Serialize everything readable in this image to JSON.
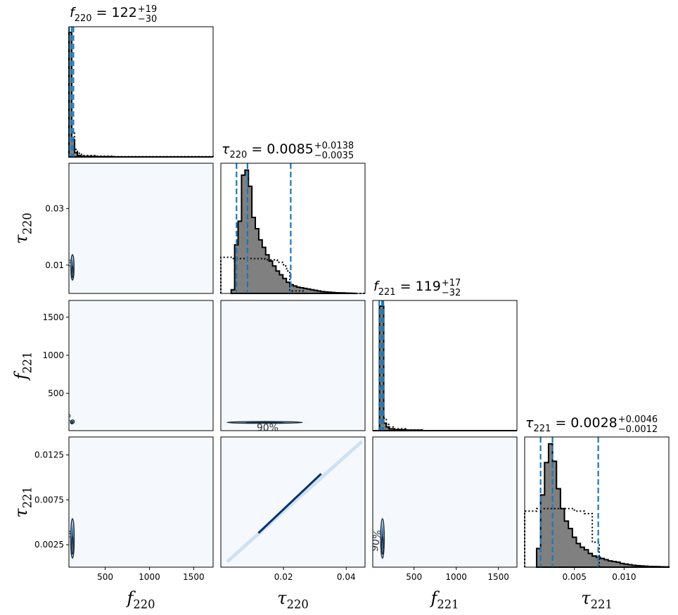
{
  "colors": {
    "hist_fill": "#808080",
    "hist_edge": "#000000",
    "prior_line": "#000000",
    "quantile_line": "#1f77b4",
    "density_bg": "#f5f9fe",
    "contour": "#1b2a3a",
    "contour_fill": "#4a7fb0",
    "frame": "#000000"
  },
  "chart_data": {
    "type": "corner",
    "parameters": [
      "f_220",
      "tau_220",
      "f_221",
      "tau_221"
    ],
    "axis_labels": [
      {
        "base": "f",
        "sub": "220"
      },
      {
        "base": "τ",
        "sub": "220"
      },
      {
        "base": "f",
        "sub": "221"
      },
      {
        "base": "τ",
        "sub": "221"
      }
    ],
    "ranges": [
      [
        90,
        1720
      ],
      [
        0.0,
        0.046
      ],
      [
        10,
        1720
      ],
      [
        0.0,
        0.0145
      ]
    ],
    "tick_values": [
      [
        500,
        1000,
        1500
      ],
      [
        0.01,
        0.03
      ],
      [
        500,
        1000,
        1500
      ],
      [
        0.0025,
        0.0075,
        0.0125
      ]
    ],
    "tick_labels": [
      [
        "500",
        "1000",
        "1500"
      ],
      [
        "0.01",
        "0.03"
      ],
      [
        "500",
        "1000",
        "1500"
      ],
      [
        "0.0025",
        "0.0075",
        "0.0125"
      ]
    ],
    "bottom_tick_values": [
      [
        500,
        1000,
        1500
      ],
      [
        0.02,
        0.04
      ],
      [
        500,
        1000,
        1500
      ],
      [
        0.005,
        0.01
      ]
    ],
    "bottom_tick_labels": [
      [
        "500",
        "1000",
        "1500"
      ],
      [
        "0.02",
        "0.04"
      ],
      [
        "500",
        "1000",
        "1500"
      ],
      [
        "0.005",
        "0.010"
      ]
    ],
    "diagonal_titles": [
      {
        "base": "f",
        "sub": "220",
        "value": "122",
        "plus": "+19",
        "minus": "−30"
      },
      {
        "base": "τ",
        "sub": "220",
        "value": "0.0085",
        "plus": "+0.0138",
        "minus": "−0.0035"
      },
      {
        "base": "f",
        "sub": "221",
        "value": "119",
        "plus": "+17",
        "minus": "−32"
      },
      {
        "base": "τ",
        "sub": "221",
        "value": "0.0028",
        "plus": "+0.0046",
        "minus": "−0.0012"
      }
    ],
    "quantiles": [
      [
        92,
        122,
        141
      ],
      [
        0.005,
        0.0085,
        0.0223
      ],
      [
        87,
        119,
        136
      ],
      [
        0.0016,
        0.0028,
        0.0074
      ]
    ],
    "posterior_histograms": [
      {
        "edges": [
          90,
          122,
          154,
          186,
          218,
          250,
          400,
          600,
          1720
        ],
        "values": [
          1.0,
          0.14,
          0.035,
          0.012,
          0.006,
          0.004,
          0.002,
          0.0
        ]
      },
      {
        "edges": [
          0.0033,
          0.0044,
          0.0055,
          0.0066,
          0.0077,
          0.0088,
          0.0099,
          0.011,
          0.0121,
          0.0132,
          0.0143,
          0.0154,
          0.0165,
          0.0176,
          0.0187,
          0.0198,
          0.0209,
          0.022,
          0.0231,
          0.0242,
          0.0253,
          0.0264,
          0.0275,
          0.0286,
          0.0297,
          0.0308,
          0.0319,
          0.033,
          0.0341,
          0.0352,
          0.0363,
          0.0374,
          0.0385,
          0.0396,
          0.0407,
          0.0418,
          0.0429
        ],
        "values": [
          0.03,
          0.39,
          0.58,
          0.95,
          0.99,
          0.86,
          0.61,
          0.52,
          0.43,
          0.37,
          0.31,
          0.26,
          0.22,
          0.18,
          0.15,
          0.12,
          0.09,
          0.07,
          0.06,
          0.05,
          0.045,
          0.04,
          0.035,
          0.03,
          0.025,
          0.02,
          0.015,
          0.012,
          0.01,
          0.008,
          0.006,
          0.005,
          0.004,
          0.003,
          0.002,
          0.001
        ]
      },
      {
        "edges": [
          10,
          90,
          140,
          170,
          200,
          260,
          400,
          600,
          1720
        ],
        "values": [
          0.0,
          1.0,
          0.06,
          0.03,
          0.015,
          0.008,
          0.004,
          0.0
        ]
      },
      {
        "edges": [
          0.0012,
          0.0016,
          0.002,
          0.0024,
          0.0028,
          0.0032,
          0.0036,
          0.004,
          0.0044,
          0.0048,
          0.0052,
          0.0056,
          0.006,
          0.0064,
          0.0068,
          0.0072,
          0.0076,
          0.008,
          0.0084,
          0.0088,
          0.0092,
          0.0096,
          0.01,
          0.0104,
          0.0108,
          0.0112,
          0.0116,
          0.012,
          0.0124,
          0.0128,
          0.0132,
          0.0136,
          0.014,
          0.0145
        ],
        "values": [
          0.15,
          0.58,
          0.84,
          0.99,
          0.85,
          0.63,
          0.47,
          0.37,
          0.31,
          0.24,
          0.19,
          0.16,
          0.14,
          0.11,
          0.09,
          0.08,
          0.07,
          0.06,
          0.05,
          0.045,
          0.04,
          0.03,
          0.025,
          0.02,
          0.015,
          0.012,
          0.01,
          0.008,
          0.006,
          0.005,
          0.004,
          0.003,
          0.002
        ]
      }
    ],
    "prior_histograms": [
      {
        "edges": [
          90,
          122,
          154,
          186,
          218,
          250,
          400,
          600,
          1720
        ],
        "values": [
          0.4,
          0.2,
          0.06,
          0.03,
          0.02,
          0.012,
          0.006,
          0.002
        ]
      },
      {
        "edges": [
          0.0,
          0.002,
          0.004,
          0.014,
          0.018,
          0.02,
          0.021,
          0.022,
          0.0265,
          0.046
        ],
        "values": [
          0.29,
          0.29,
          0.28,
          0.27,
          0.25,
          0.22,
          0.18,
          0.02,
          0.0
        ]
      },
      {
        "edges": [
          10,
          90,
          140,
          170,
          200,
          260,
          400,
          600,
          1720
        ],
        "values": [
          0.0,
          0.36,
          0.1,
          0.05,
          0.03,
          0.015,
          0.006,
          0.0
        ]
      },
      {
        "edges": [
          0.0,
          0.0012,
          0.003,
          0.005,
          0.006,
          0.0068,
          0.0075,
          0.0145
        ],
        "values": [
          0.45,
          0.47,
          0.47,
          0.45,
          0.43,
          0.2,
          0.0
        ]
      }
    ],
    "contour_label": "90%",
    "contours": [
      {
        "row": 1,
        "col": 0,
        "center": [
          130,
          0.0092
        ],
        "spread": [
          18,
          0.0045
        ],
        "rotation": 0
      },
      {
        "row": 2,
        "col": 0,
        "center": [
          128,
          125
        ],
        "spread": [
          20,
          28
        ],
        "rotation": 40
      },
      {
        "row": 2,
        "col": 1,
        "center": [
          0.014,
          118
        ],
        "spread": [
          0.012,
          12
        ],
        "rotation": 0
      },
      {
        "row": 3,
        "col": 0,
        "center": [
          130,
          0.0032
        ],
        "spread": [
          20,
          0.0022
        ],
        "rotation": 0
      },
      {
        "row": 3,
        "col": 1,
        "center": [
          0.022,
          0.0072
        ],
        "spread": [
          0.022,
          0.0072
        ],
        "rotation": "diagonal"
      },
      {
        "row": 3,
        "col": 2,
        "center": [
          125,
          0.0032
        ],
        "spread": [
          22,
          0.0022
        ],
        "rotation": 0
      }
    ]
  }
}
